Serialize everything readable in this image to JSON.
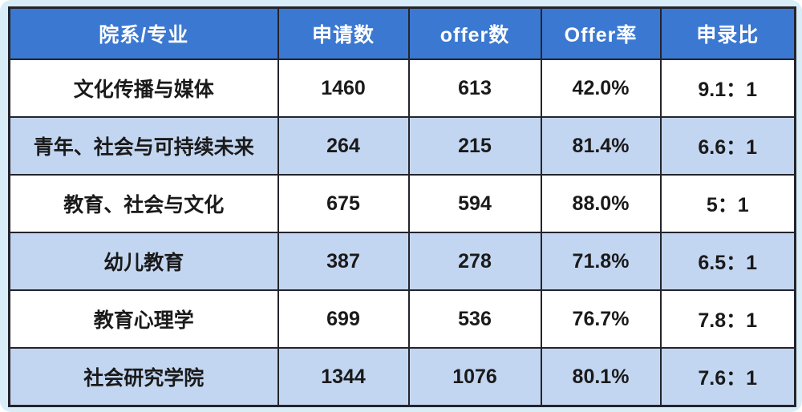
{
  "table": {
    "columns": [
      "院系/专业",
      "申请数",
      "offer数",
      "Offer率",
      "申录比"
    ],
    "rows": [
      [
        "文化传播与媒体",
        "1460",
        "613",
        "42.0%",
        "9.1：1"
      ],
      [
        "青年、社会与可持续未来",
        "264",
        "215",
        "81.4%",
        "6.6：1"
      ],
      [
        "教育、社会与文化",
        "675",
        "594",
        "88.0%",
        "5：1"
      ],
      [
        "幼儿教育",
        "387",
        "278",
        "71.8%",
        "6.5：1"
      ],
      [
        "教育心理学",
        "699",
        "536",
        "76.7%",
        "7.8：1"
      ],
      [
        "社会研究学院",
        "1344",
        "1076",
        "80.1%",
        "7.6：1"
      ]
    ]
  },
  "chart_data": {
    "type": "table",
    "title": "",
    "categories": [
      "文化传播与媒体",
      "青年、社会与可持续未来",
      "教育、社会与文化",
      "幼儿教育",
      "教育心理学",
      "社会研究学院"
    ],
    "series": [
      {
        "name": "申请数",
        "values": [
          1460,
          264,
          675,
          387,
          699,
          1344
        ]
      },
      {
        "name": "offer数",
        "values": [
          613,
          215,
          594,
          278,
          536,
          1076
        ]
      },
      {
        "name": "Offer率",
        "values": [
          "42.0%",
          "81.4%",
          "88.0%",
          "71.8%",
          "76.7%",
          "80.1%"
        ]
      },
      {
        "name": "申录比",
        "values": [
          "9.1：1",
          "6.6：1",
          "5：1",
          "6.5：1",
          "7.8：1",
          "7.6：1"
        ]
      }
    ]
  },
  "colors": {
    "page_background": "#d8edf7",
    "header_background": "#3b78d1",
    "header_text": "#ffffff",
    "row_background": "#ffffff",
    "row_alt_background": "#c3d6f1",
    "body_text": "#1a1a1a",
    "border": "#24242c"
  }
}
